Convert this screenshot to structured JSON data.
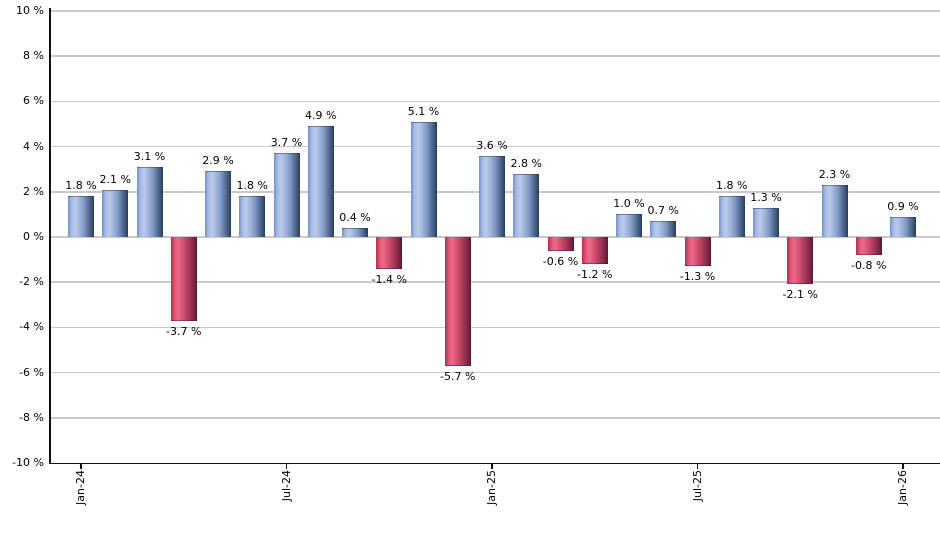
{
  "chart_data": {
    "type": "bar",
    "title": "",
    "xlabel": "",
    "ylabel": "",
    "categories": [
      "Jan-24",
      "Feb-24",
      "Mar-24",
      "Apr-24",
      "May-24",
      "Jun-24",
      "Jul-24",
      "Aug-24",
      "Sep-24",
      "Oct-24",
      "Nov-24",
      "Dec-24",
      "Jan-25",
      "Feb-25",
      "Mar-25",
      "Apr-25",
      "May-25",
      "Jun-25",
      "Jul-25",
      "Aug-25",
      "Sep-25",
      "Oct-25",
      "Nov-25",
      "Dec-25",
      "Jan-26"
    ],
    "values": [
      1.8,
      2.1,
      3.1,
      -3.7,
      2.9,
      1.8,
      3.7,
      4.9,
      0.4,
      -1.4,
      5.1,
      -5.7,
      3.6,
      2.8,
      -0.6,
      -1.2,
      1.0,
      0.7,
      -1.3,
      1.8,
      1.3,
      -2.1,
      2.3,
      -0.8,
      0.9
    ],
    "value_suffix": " %",
    "x_tick_labels": [
      "Jan-24",
      "Jul-24",
      "Jan-25",
      "Jul-25",
      "Jan-26"
    ],
    "x_tick_indices": [
      0,
      6,
      12,
      18,
      24
    ],
    "y_ticks": [
      10,
      8,
      6,
      4,
      2,
      0,
      -2,
      -4,
      -6,
      -8,
      -10
    ],
    "y_tick_suffix": " %",
    "ylim": [
      -10,
      10
    ],
    "grid": true,
    "legend": false,
    "colors": {
      "positive_bar_light": "#b9c9e9",
      "positive_bar_mid": "#7191c8",
      "positive_bar_dark": "#263a5e",
      "negative_bar_light": "#ee6886",
      "negative_bar_mid": "#b52c4e",
      "negative_bar_dark": "#5c1830",
      "gridline": "#c9c9c9",
      "axis": "#111111",
      "label_text": "#000000",
      "background": "#ffffff"
    }
  }
}
